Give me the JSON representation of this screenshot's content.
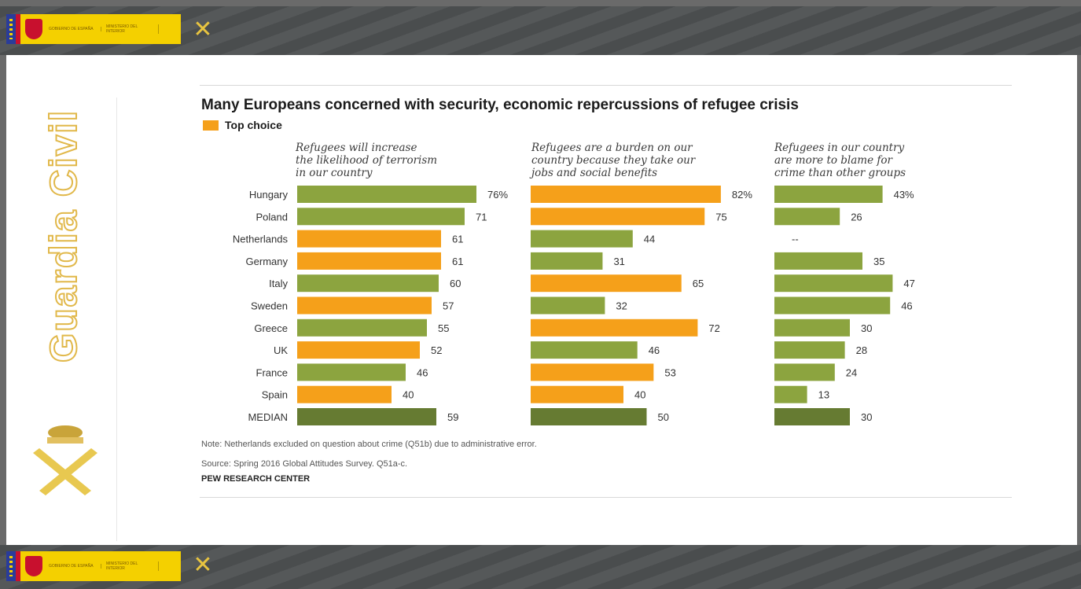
{
  "header": {
    "gov_line1": "GOBIERNO DE ESPAÑA",
    "gov_line2": "MINISTERIO DEL INTERIOR"
  },
  "sidebar": {
    "brand": "Guardia Civil"
  },
  "chart_data": {
    "type": "bar",
    "title": "Many Europeans concerned with security, economic repercussions of refugee crisis",
    "legend": [
      {
        "label": "Top choice",
        "color": "#f5a01a"
      }
    ],
    "colors": {
      "top_choice": "#f5a01a",
      "other": "#8ca43f",
      "median": "#667b32"
    },
    "categories": [
      "Hungary",
      "Poland",
      "Netherlands",
      "Germany",
      "Italy",
      "Sweden",
      "Greece",
      "UK",
      "France",
      "Spain",
      "MEDIAN"
    ],
    "series": [
      {
        "name": "Refugees will increase the likelihood of terrorism in our country",
        "values": [
          76,
          71,
          61,
          61,
          60,
          57,
          55,
          52,
          46,
          40,
          59
        ],
        "labels": [
          "76%",
          "71",
          "61",
          "61",
          "60",
          "57",
          "55",
          "52",
          "46",
          "40",
          "59"
        ],
        "top_choice": [
          false,
          false,
          true,
          true,
          false,
          true,
          false,
          true,
          false,
          true,
          false
        ]
      },
      {
        "name": "Refugees are a burden on our country because they take our jobs and social benefits",
        "values": [
          82,
          75,
          44,
          31,
          65,
          32,
          72,
          46,
          53,
          40,
          50
        ],
        "labels": [
          "82%",
          "75",
          "44",
          "31",
          "65",
          "32",
          "72",
          "46",
          "53",
          "40",
          "50"
        ],
        "top_choice": [
          true,
          true,
          false,
          false,
          true,
          false,
          true,
          false,
          true,
          true,
          false
        ]
      },
      {
        "name": "Refugees in our country are more to blame for crime than other groups",
        "values": [
          43,
          26,
          null,
          35,
          47,
          46,
          30,
          28,
          24,
          13,
          30
        ],
        "labels": [
          "43%",
          "26",
          "--",
          "35",
          "47",
          "46",
          "30",
          "28",
          "24",
          "13",
          "30"
        ],
        "top_choice": [
          false,
          false,
          false,
          false,
          false,
          false,
          false,
          false,
          false,
          false,
          false
        ]
      }
    ],
    "column_headings": [
      [
        "Refugees will increase",
        "the likelihood of terrorism",
        "in our country"
      ],
      [
        "Refugees are a burden on our",
        "country because they take our",
        "jobs and social benefits"
      ],
      [
        "Refugees in our country",
        "are more to blame for",
        "crime than other groups"
      ]
    ],
    "ylim": [
      0,
      100
    ]
  },
  "notes": {
    "note": "Note: Netherlands excluded on question about crime (Q51b) due to administrative error.",
    "source": "Source: Spring 2016 Global Attitudes Survey. Q51a-c.",
    "credit": "PEW RESEARCH CENTER"
  }
}
